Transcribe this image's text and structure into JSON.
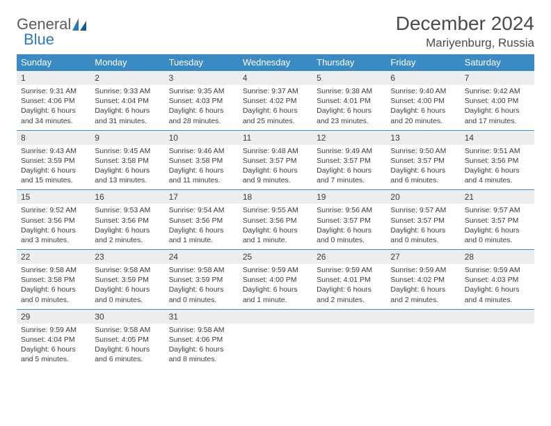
{
  "brand": {
    "word1": "General",
    "word2": "Blue"
  },
  "title": "December 2024",
  "location": "Mariyenburg, Russia",
  "colors": {
    "header_bg": "#3c8ac4",
    "daynum_bg": "#eceded",
    "rule": "#3c8ac4",
    "text": "#3a3a3a",
    "title_text": "#4a4a4a",
    "brand_gray": "#5a5a5a",
    "brand_blue": "#2a7ab8"
  },
  "weekdays": [
    "Sunday",
    "Monday",
    "Tuesday",
    "Wednesday",
    "Thursday",
    "Friday",
    "Saturday"
  ],
  "weeks": [
    [
      {
        "n": "1",
        "sunrise": "9:31 AM",
        "sunset": "4:06 PM",
        "daylight": "6 hours and 34 minutes."
      },
      {
        "n": "2",
        "sunrise": "9:33 AM",
        "sunset": "4:04 PM",
        "daylight": "6 hours and 31 minutes."
      },
      {
        "n": "3",
        "sunrise": "9:35 AM",
        "sunset": "4:03 PM",
        "daylight": "6 hours and 28 minutes."
      },
      {
        "n": "4",
        "sunrise": "9:37 AM",
        "sunset": "4:02 PM",
        "daylight": "6 hours and 25 minutes."
      },
      {
        "n": "5",
        "sunrise": "9:38 AM",
        "sunset": "4:01 PM",
        "daylight": "6 hours and 23 minutes."
      },
      {
        "n": "6",
        "sunrise": "9:40 AM",
        "sunset": "4:00 PM",
        "daylight": "6 hours and 20 minutes."
      },
      {
        "n": "7",
        "sunrise": "9:42 AM",
        "sunset": "4:00 PM",
        "daylight": "6 hours and 17 minutes."
      }
    ],
    [
      {
        "n": "8",
        "sunrise": "9:43 AM",
        "sunset": "3:59 PM",
        "daylight": "6 hours and 15 minutes."
      },
      {
        "n": "9",
        "sunrise": "9:45 AM",
        "sunset": "3:58 PM",
        "daylight": "6 hours and 13 minutes."
      },
      {
        "n": "10",
        "sunrise": "9:46 AM",
        "sunset": "3:58 PM",
        "daylight": "6 hours and 11 minutes."
      },
      {
        "n": "11",
        "sunrise": "9:48 AM",
        "sunset": "3:57 PM",
        "daylight": "6 hours and 9 minutes."
      },
      {
        "n": "12",
        "sunrise": "9:49 AM",
        "sunset": "3:57 PM",
        "daylight": "6 hours and 7 minutes."
      },
      {
        "n": "13",
        "sunrise": "9:50 AM",
        "sunset": "3:57 PM",
        "daylight": "6 hours and 6 minutes."
      },
      {
        "n": "14",
        "sunrise": "9:51 AM",
        "sunset": "3:56 PM",
        "daylight": "6 hours and 4 minutes."
      }
    ],
    [
      {
        "n": "15",
        "sunrise": "9:52 AM",
        "sunset": "3:56 PM",
        "daylight": "6 hours and 3 minutes."
      },
      {
        "n": "16",
        "sunrise": "9:53 AM",
        "sunset": "3:56 PM",
        "daylight": "6 hours and 2 minutes."
      },
      {
        "n": "17",
        "sunrise": "9:54 AM",
        "sunset": "3:56 PM",
        "daylight": "6 hours and 1 minute."
      },
      {
        "n": "18",
        "sunrise": "9:55 AM",
        "sunset": "3:56 PM",
        "daylight": "6 hours and 1 minute."
      },
      {
        "n": "19",
        "sunrise": "9:56 AM",
        "sunset": "3:57 PM",
        "daylight": "6 hours and 0 minutes."
      },
      {
        "n": "20",
        "sunrise": "9:57 AM",
        "sunset": "3:57 PM",
        "daylight": "6 hours and 0 minutes."
      },
      {
        "n": "21",
        "sunrise": "9:57 AM",
        "sunset": "3:57 PM",
        "daylight": "6 hours and 0 minutes."
      }
    ],
    [
      {
        "n": "22",
        "sunrise": "9:58 AM",
        "sunset": "3:58 PM",
        "daylight": "6 hours and 0 minutes."
      },
      {
        "n": "23",
        "sunrise": "9:58 AM",
        "sunset": "3:59 PM",
        "daylight": "6 hours and 0 minutes."
      },
      {
        "n": "24",
        "sunrise": "9:58 AM",
        "sunset": "3:59 PM",
        "daylight": "6 hours and 0 minutes."
      },
      {
        "n": "25",
        "sunrise": "9:59 AM",
        "sunset": "4:00 PM",
        "daylight": "6 hours and 1 minute."
      },
      {
        "n": "26",
        "sunrise": "9:59 AM",
        "sunset": "4:01 PM",
        "daylight": "6 hours and 2 minutes."
      },
      {
        "n": "27",
        "sunrise": "9:59 AM",
        "sunset": "4:02 PM",
        "daylight": "6 hours and 2 minutes."
      },
      {
        "n": "28",
        "sunrise": "9:59 AM",
        "sunset": "4:03 PM",
        "daylight": "6 hours and 4 minutes."
      }
    ],
    [
      {
        "n": "29",
        "sunrise": "9:59 AM",
        "sunset": "4:04 PM",
        "daylight": "6 hours and 5 minutes."
      },
      {
        "n": "30",
        "sunrise": "9:58 AM",
        "sunset": "4:05 PM",
        "daylight": "6 hours and 6 minutes."
      },
      {
        "n": "31",
        "sunrise": "9:58 AM",
        "sunset": "4:06 PM",
        "daylight": "6 hours and 8 minutes."
      },
      {
        "empty": true
      },
      {
        "empty": true
      },
      {
        "empty": true
      },
      {
        "empty": true
      }
    ]
  ],
  "labels": {
    "sunrise": "Sunrise:",
    "sunset": "Sunset:",
    "daylight": "Daylight:"
  }
}
